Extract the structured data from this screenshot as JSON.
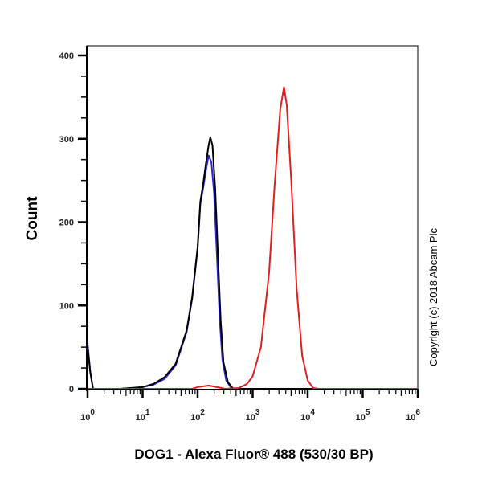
{
  "chart_data": {
    "type": "line",
    "title": "",
    "xlabel": "DOG1 - Alexa Fluor® 488 (530/30 BP)",
    "ylabel": "Count",
    "xscale": "log",
    "xlim_log10": [
      0,
      6
    ],
    "ylim": [
      0,
      400
    ],
    "yticks": [
      "0",
      "100",
      "200",
      "300",
      "400"
    ],
    "xticks": [
      {
        "base": "10",
        "exp": "0"
      },
      {
        "base": "10",
        "exp": "1"
      },
      {
        "base": "10",
        "exp": "2"
      },
      {
        "base": "10",
        "exp": "3"
      },
      {
        "base": "10",
        "exp": "4"
      },
      {
        "base": "10",
        "exp": "5"
      },
      {
        "base": "10",
        "exp": "6"
      }
    ],
    "grid": false,
    "annotation": "Copyright (c) 2018 Abcam Plc",
    "series": [
      {
        "name": "blue",
        "color": "#2a2ad0",
        "points_log10x_count": [
          [
            0,
            55
          ],
          [
            0.05,
            20
          ],
          [
            0.1,
            0
          ],
          [
            0.6,
            0
          ],
          [
            1.0,
            2
          ],
          [
            1.2,
            5
          ],
          [
            1.4,
            12
          ],
          [
            1.6,
            28
          ],
          [
            1.8,
            68
          ],
          [
            1.9,
            108
          ],
          [
            2.0,
            168
          ],
          [
            2.05,
            222
          ],
          [
            2.1,
            240
          ],
          [
            2.15,
            262
          ],
          [
            2.2,
            280
          ],
          [
            2.25,
            272
          ],
          [
            2.3,
            235
          ],
          [
            2.35,
            160
          ],
          [
            2.4,
            85
          ],
          [
            2.45,
            35
          ],
          [
            2.52,
            10
          ],
          [
            2.62,
            0
          ],
          [
            6,
            0
          ]
        ]
      },
      {
        "name": "black",
        "color": "#000000",
        "points_log10x_count": [
          [
            0,
            50
          ],
          [
            0.05,
            20
          ],
          [
            0.1,
            0
          ],
          [
            0.6,
            0
          ],
          [
            1.0,
            2
          ],
          [
            1.2,
            6
          ],
          [
            1.4,
            14
          ],
          [
            1.6,
            30
          ],
          [
            1.8,
            70
          ],
          [
            1.9,
            110
          ],
          [
            2.0,
            170
          ],
          [
            2.05,
            225
          ],
          [
            2.1,
            245
          ],
          [
            2.15,
            270
          ],
          [
            2.2,
            292
          ],
          [
            2.23,
            302
          ],
          [
            2.27,
            292
          ],
          [
            2.32,
            240
          ],
          [
            2.37,
            160
          ],
          [
            2.42,
            80
          ],
          [
            2.47,
            32
          ],
          [
            2.55,
            8
          ],
          [
            2.65,
            0
          ],
          [
            6,
            0
          ]
        ]
      },
      {
        "name": "red",
        "color": "#e02020",
        "points_log10x_count": [
          [
            0,
            0
          ],
          [
            1.9,
            0
          ],
          [
            2.0,
            2
          ],
          [
            2.2,
            4
          ],
          [
            2.35,
            2
          ],
          [
            2.5,
            0
          ],
          [
            2.75,
            1
          ],
          [
            2.9,
            6
          ],
          [
            3.0,
            15
          ],
          [
            3.15,
            50
          ],
          [
            3.3,
            140
          ],
          [
            3.4,
            245
          ],
          [
            3.5,
            335
          ],
          [
            3.57,
            362
          ],
          [
            3.62,
            340
          ],
          [
            3.7,
            250
          ],
          [
            3.8,
            120
          ],
          [
            3.9,
            40
          ],
          [
            4.0,
            10
          ],
          [
            4.1,
            1
          ],
          [
            4.2,
            0
          ],
          [
            6,
            0
          ]
        ]
      }
    ]
  }
}
